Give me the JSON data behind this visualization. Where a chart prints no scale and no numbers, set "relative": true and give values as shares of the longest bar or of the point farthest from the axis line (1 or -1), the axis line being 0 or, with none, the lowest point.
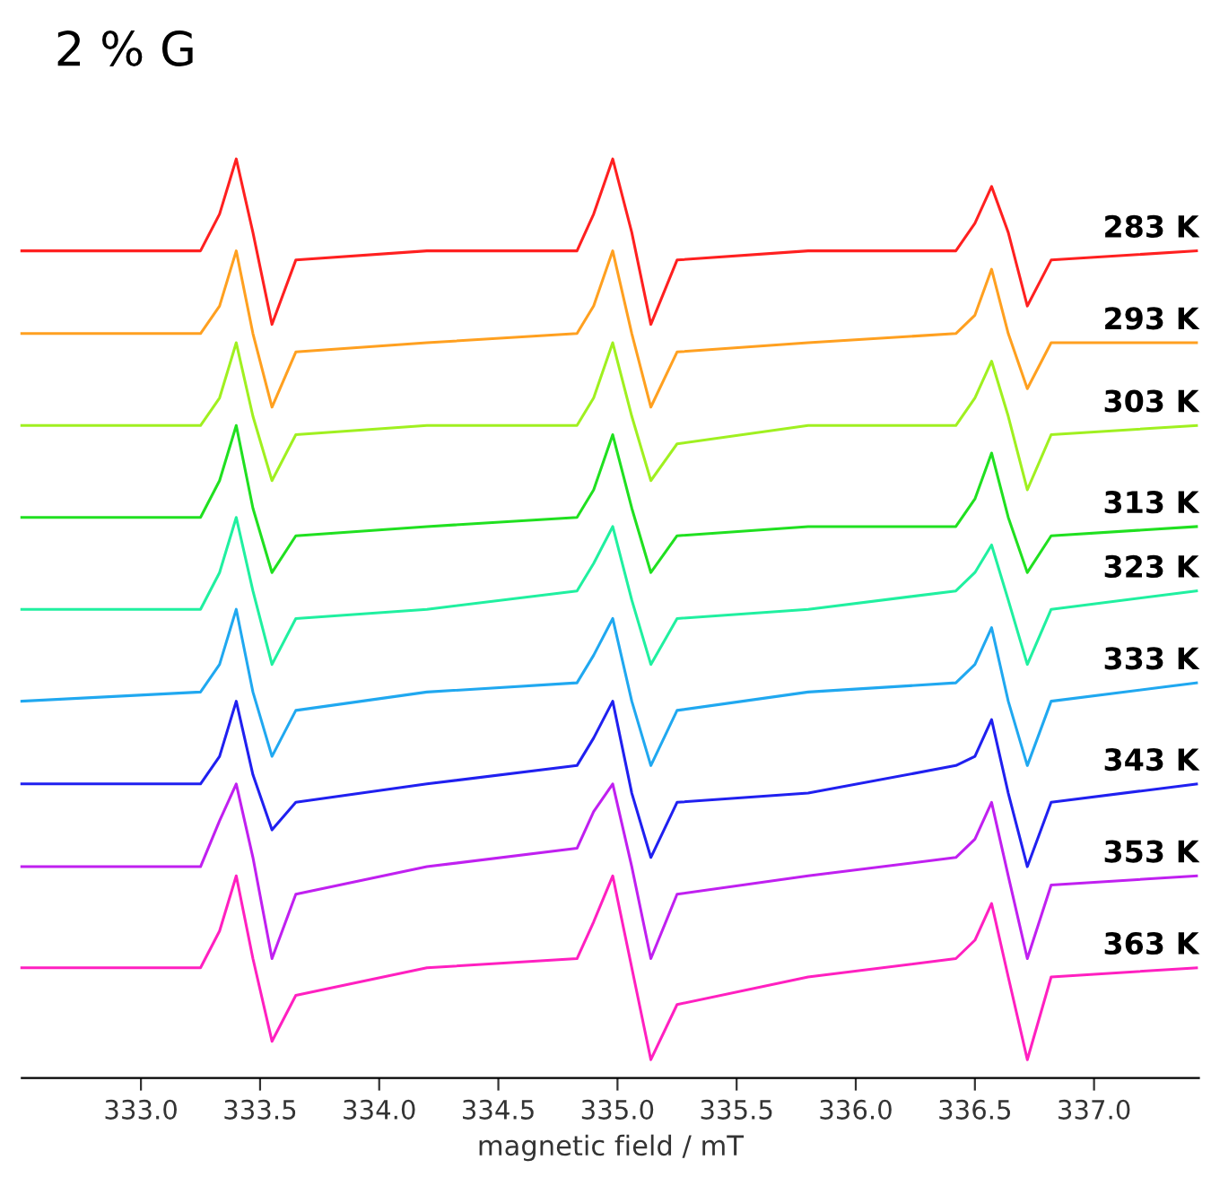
{
  "chart_data": {
    "type": "line",
    "title": "2 % G",
    "xlabel": "magnetic field / mT",
    "relative": true,
    "x": [
      332.5,
      333.25,
      333.33,
      333.4,
      333.47,
      333.55,
      333.65,
      334.2,
      334.83,
      334.9,
      334.98,
      335.06,
      335.14,
      335.25,
      335.8,
      336.42,
      336.5,
      336.57,
      336.64,
      336.72,
      336.82,
      337.43
    ],
    "xlim": [
      332.5,
      337.44
    ],
    "xticks": [
      {
        "value": 333,
        "label": "333.0"
      },
      {
        "value": 333.5,
        "label": "333.5"
      },
      {
        "value": 334,
        "label": "334.0"
      },
      {
        "value": 334.5,
        "label": "334.5"
      },
      {
        "value": 335,
        "label": "335.0"
      },
      {
        "value": 335.5,
        "label": "335.5"
      },
      {
        "value": 336,
        "label": "336.0"
      },
      {
        "value": 336.5,
        "label": "336.5"
      },
      {
        "value": 337,
        "label": "337.0"
      }
    ],
    "grid": false,
    "series": [
      {
        "name": "283 K",
        "color": "#ff2020",
        "values": [
          0.9,
          0.9,
          0.94,
          1.0,
          0.92,
          0.82,
          0.89,
          0.9,
          0.9,
          0.94,
          1.0,
          0.92,
          0.82,
          0.89,
          0.9,
          0.9,
          0.93,
          0.97,
          0.92,
          0.84,
          0.89,
          0.9
        ]
      },
      {
        "name": "293 K",
        "color": "#ffa020",
        "values": [
          0.81,
          0.81,
          0.84,
          0.9,
          0.81,
          0.73,
          0.79,
          0.8,
          0.81,
          0.84,
          0.9,
          0.81,
          0.73,
          0.79,
          0.8,
          0.81,
          0.83,
          0.88,
          0.81,
          0.75,
          0.8,
          0.8
        ]
      },
      {
        "name": "303 K",
        "color": "#a0f020",
        "values": [
          0.71,
          0.71,
          0.74,
          0.8,
          0.72,
          0.65,
          0.7,
          0.71,
          0.71,
          0.74,
          0.8,
          0.72,
          0.65,
          0.69,
          0.71,
          0.71,
          0.74,
          0.78,
          0.72,
          0.64,
          0.7,
          0.71
        ]
      },
      {
        "name": "313 K",
        "color": "#20e020",
        "values": [
          0.61,
          0.61,
          0.65,
          0.71,
          0.62,
          0.55,
          0.59,
          0.6,
          0.61,
          0.64,
          0.7,
          0.62,
          0.55,
          0.59,
          0.6,
          0.6,
          0.63,
          0.68,
          0.61,
          0.55,
          0.59,
          0.6
        ]
      },
      {
        "name": "323 K",
        "color": "#20f0a0",
        "values": [
          0.51,
          0.51,
          0.55,
          0.61,
          0.53,
          0.45,
          0.5,
          0.51,
          0.53,
          0.56,
          0.6,
          0.52,
          0.45,
          0.5,
          0.51,
          0.53,
          0.55,
          0.58,
          0.52,
          0.45,
          0.51,
          0.53
        ]
      },
      {
        "name": "333 K",
        "color": "#20a8f0",
        "values": [
          0.41,
          0.42,
          0.45,
          0.51,
          0.42,
          0.35,
          0.4,
          0.42,
          0.43,
          0.46,
          0.5,
          0.41,
          0.34,
          0.4,
          0.42,
          0.43,
          0.45,
          0.49,
          0.41,
          0.34,
          0.41,
          0.43
        ]
      },
      {
        "name": "343 K",
        "color": "#2020f0",
        "values": [
          0.32,
          0.32,
          0.35,
          0.41,
          0.33,
          0.27,
          0.3,
          0.32,
          0.34,
          0.37,
          0.41,
          0.31,
          0.24,
          0.3,
          0.31,
          0.34,
          0.35,
          0.39,
          0.31,
          0.23,
          0.3,
          0.32
        ]
      },
      {
        "name": "353 K",
        "color": "#c020f0",
        "values": [
          0.23,
          0.23,
          0.28,
          0.32,
          0.24,
          0.13,
          0.2,
          0.23,
          0.25,
          0.29,
          0.32,
          0.23,
          0.13,
          0.2,
          0.22,
          0.24,
          0.26,
          0.3,
          0.22,
          0.13,
          0.21,
          0.22
        ]
      },
      {
        "name": "363 K",
        "color": "#ff20c0",
        "values": [
          0.12,
          0.12,
          0.16,
          0.22,
          0.13,
          0.04,
          0.09,
          0.12,
          0.13,
          0.17,
          0.22,
          0.12,
          0.02,
          0.08,
          0.11,
          0.13,
          0.15,
          0.19,
          0.11,
          0.02,
          0.11,
          0.12
        ]
      }
    ]
  }
}
